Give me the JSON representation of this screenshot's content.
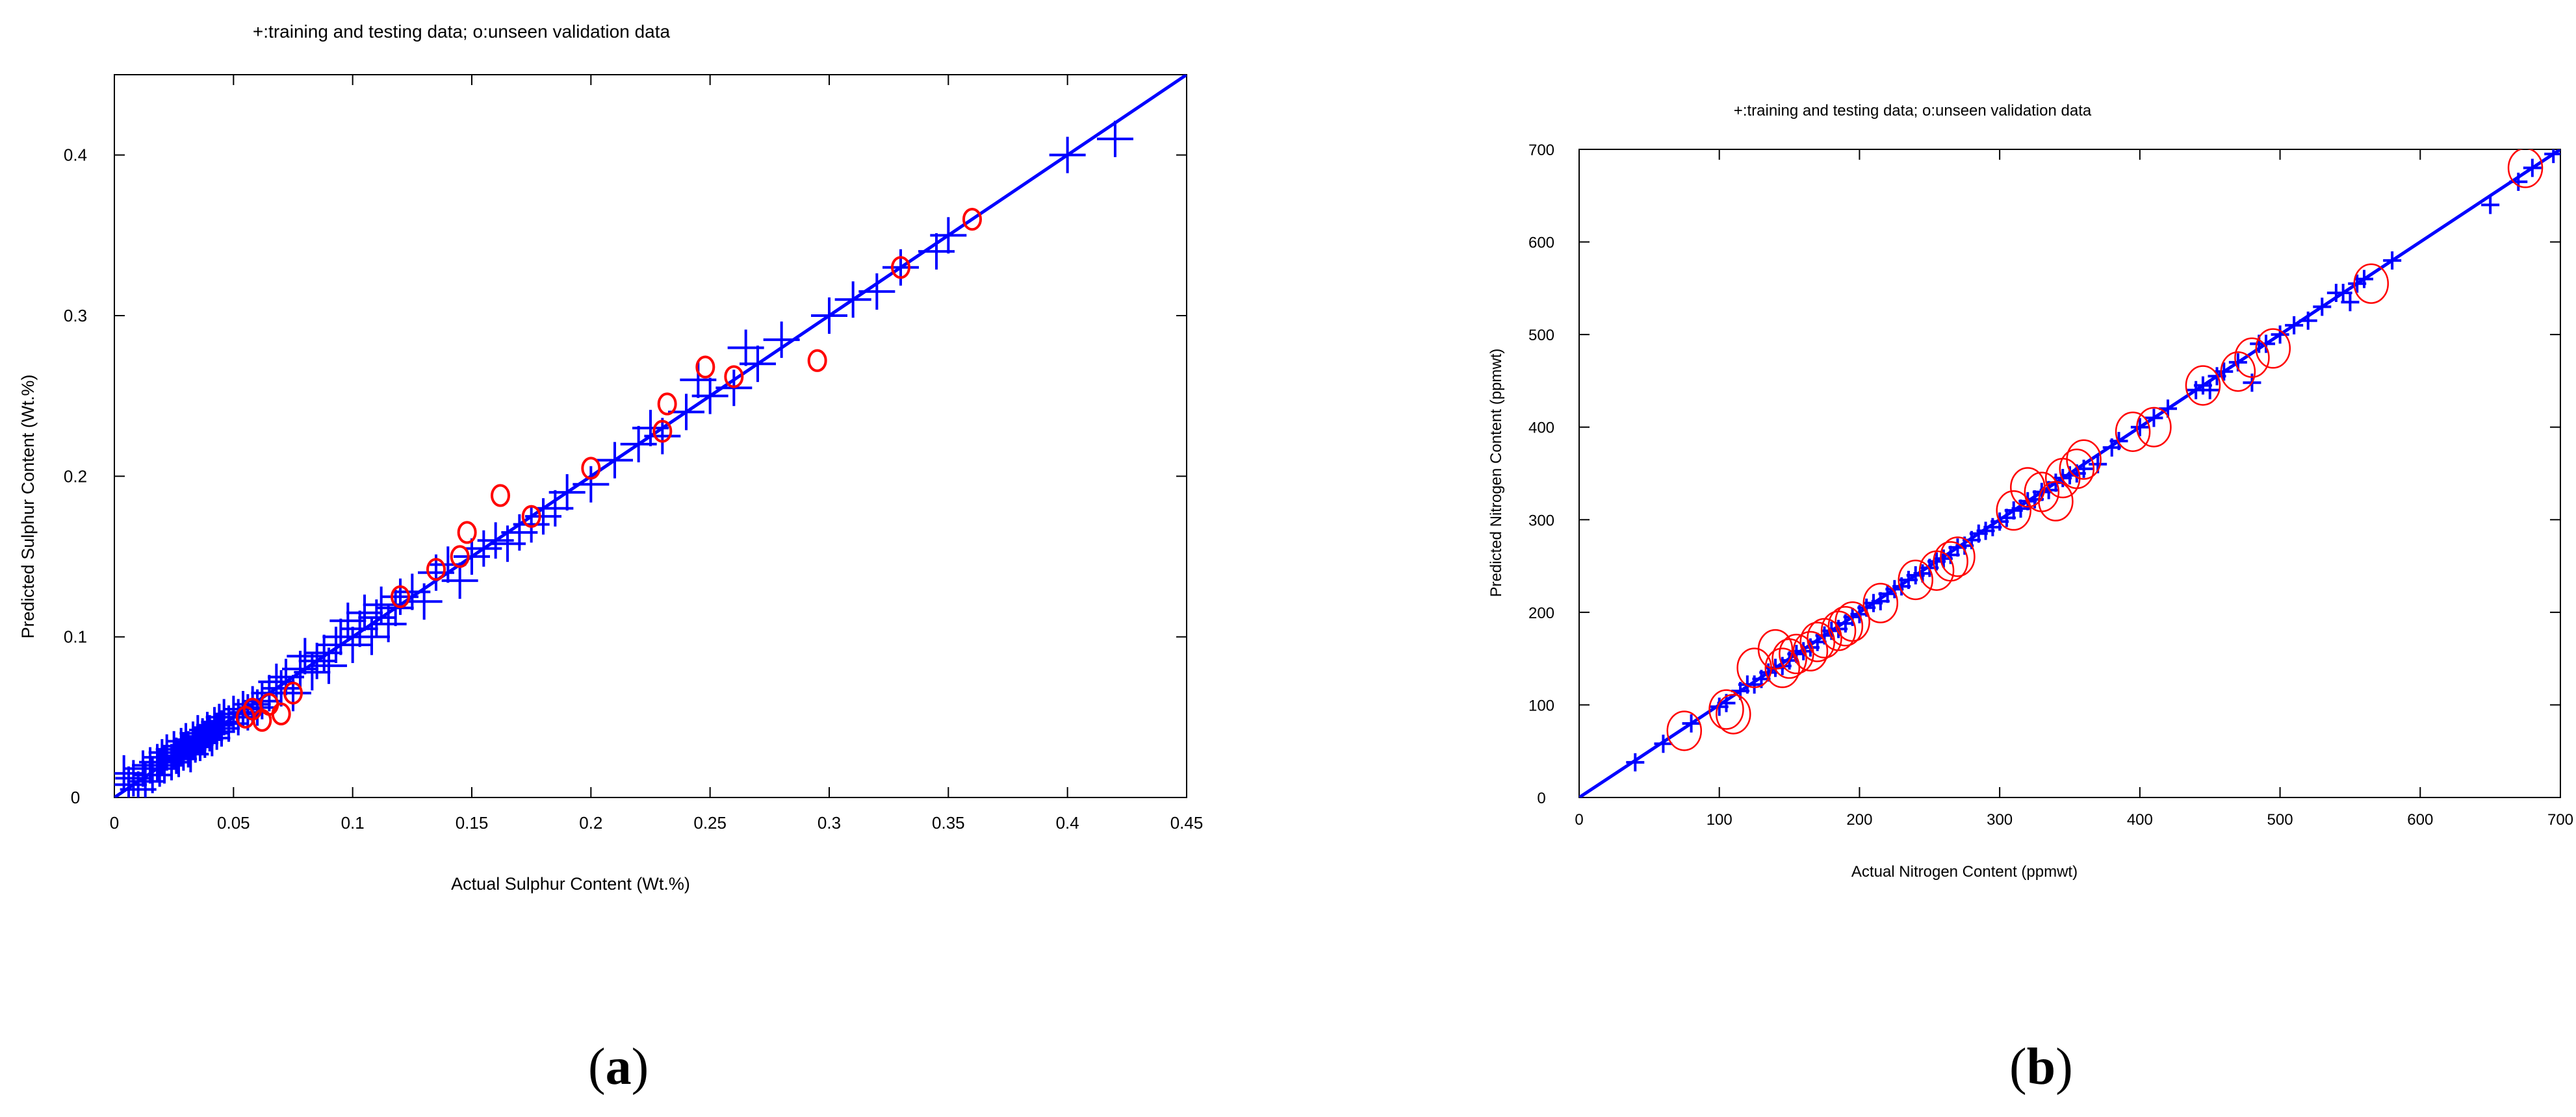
{
  "colors": {
    "training": "#0000ff",
    "validation": "#ff0000",
    "fit_line": "#0000ff",
    "axes": "#000000"
  },
  "panels": [
    {
      "open": "(",
      "letter": "a",
      "close": ")"
    },
    {
      "open": "(",
      "letter": "b",
      "close": ")"
    }
  ],
  "chart_data": [
    {
      "type": "scatter",
      "title": "+:training and testing data; o:unseen validation data",
      "xlabel": "Actual Sulphur Content (Wt.%)",
      "ylabel": "Predicted Sulphur Content (Wt.%)",
      "xlim": [
        0,
        0.45
      ],
      "ylim": [
        0,
        0.45
      ],
      "xticks": [
        0,
        0.05,
        0.1,
        0.15,
        0.2,
        0.25,
        0.3,
        0.35,
        0.4,
        0.45
      ],
      "xticklabels": [
        "0",
        "0.05",
        "0.1",
        "0.15",
        "0.2",
        "0.25",
        "0.3",
        "0.35",
        "0.4",
        "0.45"
      ],
      "yticks": [
        0,
        0.1,
        0.2,
        0.3,
        0.4
      ],
      "yticklabels": [
        "0",
        "0.1",
        "0.2",
        "0.3",
        "0.4"
      ],
      "grid": false,
      "fit_line": {
        "x": [
          0,
          0.45
        ],
        "y": [
          0,
          0.45
        ]
      },
      "series": [
        {
          "marker": "+",
          "color": "#0000ff",
          "x": [
            0.004,
            0.006,
            0.008,
            0.01,
            0.012,
            0.013,
            0.015,
            0.016,
            0.018,
            0.019,
            0.02,
            0.021,
            0.022,
            0.024,
            0.025,
            0.026,
            0.027,
            0.028,
            0.029,
            0.03,
            0.031,
            0.032,
            0.033,
            0.034,
            0.035,
            0.036,
            0.037,
            0.038,
            0.039,
            0.04,
            0.041,
            0.042,
            0.043,
            0.044,
            0.045,
            0.046,
            0.048,
            0.05,
            0.052,
            0.054,
            0.056,
            0.058,
            0.06,
            0.062,
            0.065,
            0.068,
            0.07,
            0.072,
            0.075,
            0.078,
            0.08,
            0.083,
            0.085,
            0.088,
            0.09,
            0.093,
            0.095,
            0.098,
            0.1,
            0.103,
            0.105,
            0.108,
            0.11,
            0.112,
            0.115,
            0.118,
            0.12,
            0.125,
            0.13,
            0.135,
            0.14,
            0.145,
            0.15,
            0.155,
            0.16,
            0.165,
            0.17,
            0.175,
            0.18,
            0.185,
            0.19,
            0.2,
            0.21,
            0.22,
            0.225,
            0.23,
            0.24,
            0.245,
            0.25,
            0.26,
            0.265,
            0.27,
            0.28,
            0.3,
            0.31,
            0.32,
            0.33,
            0.345,
            0.35,
            0.4,
            0.42
          ],
          "y": [
            0.015,
            0.008,
            0.012,
            0.005,
            0.018,
            0.01,
            0.02,
            0.014,
            0.022,
            0.018,
            0.025,
            0.02,
            0.028,
            0.022,
            0.03,
            0.026,
            0.024,
            0.032,
            0.028,
            0.035,
            0.03,
            0.027,
            0.036,
            0.033,
            0.04,
            0.034,
            0.038,
            0.036,
            0.042,
            0.04,
            0.037,
            0.045,
            0.041,
            0.047,
            0.043,
            0.05,
            0.046,
            0.052,
            0.05,
            0.055,
            0.053,
            0.058,
            0.056,
            0.06,
            0.065,
            0.072,
            0.068,
            0.075,
            0.065,
            0.08,
            0.088,
            0.078,
            0.085,
            0.09,
            0.082,
            0.095,
            0.1,
            0.11,
            0.095,
            0.105,
            0.115,
            0.1,
            0.112,
            0.12,
            0.108,
            0.118,
            0.125,
            0.128,
            0.122,
            0.14,
            0.145,
            0.135,
            0.15,
            0.155,
            0.16,
            0.158,
            0.165,
            0.17,
            0.175,
            0.18,
            0.19,
            0.195,
            0.21,
            0.22,
            0.23,
            0.225,
            0.24,
            0.26,
            0.25,
            0.255,
            0.28,
            0.27,
            0.285,
            0.3,
            0.31,
            0.315,
            0.33,
            0.34,
            0.35,
            0.4,
            0.41
          ]
        },
        {
          "marker": "o",
          "color": "#ff0000",
          "x": [
            0.055,
            0.058,
            0.062,
            0.065,
            0.07,
            0.075,
            0.12,
            0.135,
            0.145,
            0.148,
            0.162,
            0.175,
            0.2,
            0.23,
            0.232,
            0.248,
            0.26,
            0.295,
            0.33,
            0.36
          ],
          "y": [
            0.05,
            0.055,
            0.048,
            0.058,
            0.052,
            0.065,
            0.125,
            0.142,
            0.15,
            0.165,
            0.188,
            0.175,
            0.205,
            0.228,
            0.245,
            0.268,
            0.262,
            0.272,
            0.33,
            0.36
          ]
        }
      ]
    },
    {
      "type": "scatter",
      "title": "+:training and testing data; o:unseen validation data",
      "xlabel": "Actual Nitrogen Content (ppmwt)",
      "ylabel": "Predicted Nitrogen Content (ppmwt)",
      "xlim": [
        0,
        700
      ],
      "ylim": [
        0,
        700
      ],
      "xticks": [
        0,
        100,
        200,
        300,
        400,
        500,
        600,
        700
      ],
      "xticklabels": [
        "0",
        "100",
        "200",
        "300",
        "400",
        "500",
        "600",
        "700"
      ],
      "yticks": [
        0,
        100,
        200,
        300,
        400,
        500,
        600,
        700
      ],
      "yticklabels": [
        "0",
        "100",
        "200",
        "300",
        "400",
        "500",
        "600",
        "700"
      ],
      "grid": false,
      "fit_line": {
        "x": [
          0,
          700
        ],
        "y": [
          0,
          700
        ]
      },
      "series": [
        {
          "marker": "+",
          "color": "#0000ff",
          "x": [
            40,
            60,
            80,
            100,
            105,
            115,
            120,
            125,
            130,
            135,
            140,
            145,
            150,
            155,
            160,
            165,
            170,
            175,
            180,
            185,
            190,
            195,
            200,
            205,
            210,
            215,
            220,
            225,
            230,
            235,
            240,
            245,
            250,
            255,
            260,
            265,
            270,
            275,
            280,
            285,
            290,
            295,
            300,
            305,
            310,
            315,
            320,
            325,
            330,
            335,
            340,
            345,
            350,
            355,
            360,
            370,
            380,
            385,
            400,
            410,
            420,
            440,
            445,
            450,
            455,
            460,
            470,
            480,
            485,
            490,
            500,
            510,
            520,
            530,
            540,
            545,
            550,
            555,
            560,
            580,
            650,
            670,
            680,
            695
          ],
          "y": [
            38,
            58,
            80,
            98,
            102,
            115,
            122,
            122,
            128,
            135,
            140,
            142,
            148,
            155,
            158,
            162,
            168,
            175,
            180,
            182,
            188,
            195,
            198,
            205,
            210,
            212,
            220,
            225,
            228,
            235,
            240,
            242,
            248,
            255,
            258,
            262,
            270,
            272,
            278,
            285,
            288,
            292,
            298,
            302,
            310,
            312,
            320,
            322,
            330,
            332,
            340,
            345,
            348,
            350,
            355,
            360,
            378,
            385,
            400,
            410,
            420,
            440,
            445,
            440,
            455,
            460,
            470,
            448,
            490,
            490,
            500,
            510,
            515,
            530,
            545,
            545,
            535,
            555,
            560,
            580,
            640,
            665,
            680,
            695
          ]
        },
        {
          "marker": "o",
          "color": "#ff0000",
          "x": [
            75,
            105,
            110,
            125,
            140,
            145,
            150,
            155,
            165,
            170,
            175,
            185,
            190,
            195,
            215,
            240,
            255,
            265,
            270,
            310,
            320,
            330,
            340,
            345,
            355,
            360,
            395,
            410,
            445,
            470,
            480,
            495,
            565,
            675
          ],
          "y": [
            72,
            95,
            90,
            140,
            160,
            140,
            150,
            155,
            158,
            168,
            172,
            180,
            185,
            190,
            210,
            235,
            245,
            255,
            260,
            310,
            335,
            330,
            320,
            345,
            355,
            365,
            395,
            400,
            445,
            460,
            475,
            485,
            555,
            680
          ]
        }
      ]
    }
  ]
}
